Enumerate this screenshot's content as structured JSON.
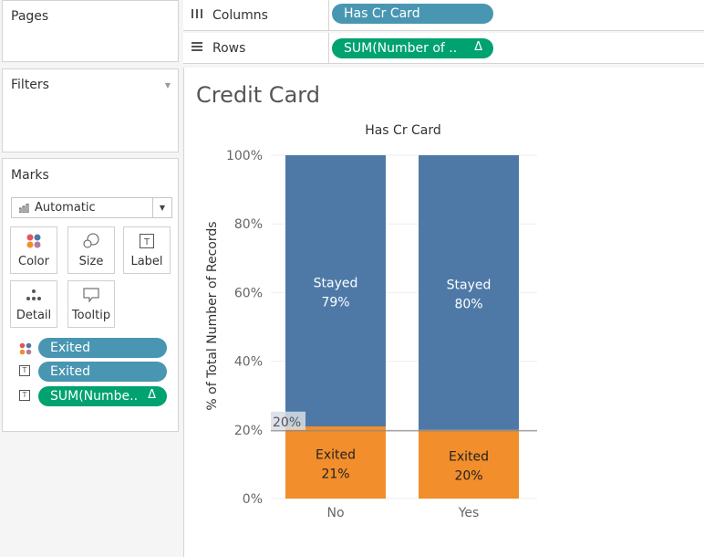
{
  "pages_panel": {
    "title": "Pages"
  },
  "filters_panel": {
    "title": "Filters"
  },
  "marks_panel": {
    "title": "Marks",
    "mark_type": "Automatic",
    "buttons": [
      "Color",
      "Size",
      "Label",
      "Detail",
      "Tooltip"
    ],
    "fields": [
      {
        "label": "Exited",
        "icon": "color-dots-icon",
        "kind": "dimension"
      },
      {
        "label": "Exited",
        "icon": "text-label-icon",
        "kind": "dimension"
      },
      {
        "label": "SUM(Numbe..",
        "icon": "text-label-icon",
        "kind": "measure",
        "delta": "Δ"
      }
    ]
  },
  "shelves": {
    "columns_label": "Columns",
    "columns_pill": "Has Cr Card",
    "rows_label": "Rows",
    "rows_pill": "SUM(Number of ..",
    "rows_delta": "Δ"
  },
  "sheet": {
    "title": "Credit Card"
  },
  "colors": {
    "stayed": "#4e79a7",
    "exited": "#f28e2b",
    "dimension_pill": "#4996b2",
    "measure_pill": "#00a270"
  },
  "chart_data": {
    "type": "bar",
    "stacked": true,
    "title": "Has Cr Card",
    "ylabel": "% of Total Number of Records",
    "xlabel": "",
    "categories": [
      "No",
      "Yes"
    ],
    "y_ticks": [
      "0%",
      "20%",
      "40%",
      "60%",
      "80%",
      "100%"
    ],
    "ylim": [
      0,
      100
    ],
    "series": [
      {
        "name": "Exited",
        "values": [
          21,
          20
        ],
        "labels": [
          "21%",
          "20%"
        ]
      },
      {
        "name": "Stayed",
        "values": [
          79,
          80
        ],
        "labels": [
          "79%",
          "80%"
        ]
      }
    ],
    "reference_line": {
      "value": 20,
      "label": "20%"
    }
  }
}
